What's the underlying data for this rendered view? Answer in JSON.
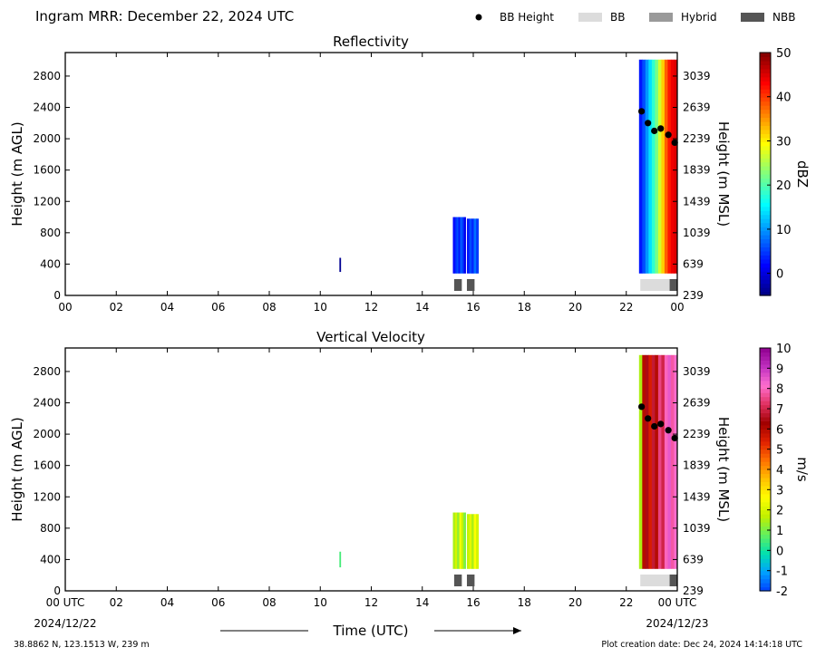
{
  "header": {
    "title": "Ingram MRR:  December 22, 2024 UTC",
    "legend": [
      {
        "label": "BB Height",
        "kind": "dot",
        "color": "#000000"
      },
      {
        "label": "BB",
        "kind": "swatch",
        "color": "#dcdcdc"
      },
      {
        "label": "Hybrid",
        "kind": "swatch",
        "color": "#9a9a9a"
      },
      {
        "label": "NBB",
        "kind": "swatch",
        "color": "#555555"
      }
    ]
  },
  "footer": {
    "location": "38.8862 N, 123.1513 W, 239 m",
    "creation_date": "Plot creation date: Dec 24, 2024 14:14:18 UTC",
    "xlabel": "Time (UTC)",
    "start_date": "2024/12/22",
    "end_date": "2024/12/23"
  },
  "chart_data": [
    {
      "type": "heatmap",
      "title": "Reflectivity",
      "ylabel": "Height (m AGL)",
      "y2label": "Height (m MSL)",
      "colorbar_label": "dBZ",
      "xlim": [
        0,
        24
      ],
      "ylim": [
        0,
        3100
      ],
      "x_ticks": [
        "00",
        "02",
        "04",
        "06",
        "08",
        "10",
        "12",
        "14",
        "16",
        "18",
        "20",
        "22",
        "00"
      ],
      "y_ticks": [
        0,
        400,
        800,
        1200,
        1600,
        2000,
        2400,
        2800
      ],
      "y2_ticks": [
        239,
        639,
        1039,
        1439,
        1839,
        2239,
        2639,
        3039
      ],
      "colorbar_range": [
        -5,
        50
      ],
      "colorbar_ticks": [
        0,
        10,
        20,
        30,
        40,
        50
      ],
      "colormap": [
        "#00007f",
        "#0000ff",
        "#007fff",
        "#00ffff",
        "#7fff7f",
        "#ffff00",
        "#ff7f00",
        "#ff0000",
        "#7f0000"
      ],
      "bb_height": {
        "x": [
          22.6,
          22.85,
          23.1,
          23.35,
          23.65,
          23.9
        ],
        "y": [
          2350,
          2200,
          2100,
          2130,
          2050,
          1950
        ]
      },
      "bb_type": [
        {
          "start": 15.25,
          "end": 15.55,
          "type": "NBB"
        },
        {
          "start": 15.75,
          "end": 16.05,
          "type": "NBB"
        },
        {
          "start": 22.55,
          "end": 23.7,
          "type": "BB"
        },
        {
          "start": 23.7,
          "end": 24.0,
          "type": "NBB"
        }
      ],
      "echoes": [
        {
          "t0": 10.75,
          "t1": 10.8,
          "h0": 300,
          "h1": 480,
          "values": [
            -4
          ]
        },
        {
          "t0": 15.2,
          "t1": 15.7,
          "h0": 280,
          "h1": 1000,
          "values": [
            2,
            4,
            6,
            3,
            7,
            5,
            1
          ]
        },
        {
          "t0": 15.75,
          "t1": 16.2,
          "h0": 280,
          "h1": 980,
          "values": [
            3,
            6,
            4,
            8,
            5
          ]
        },
        {
          "t0": 22.5,
          "t1": 24.0,
          "h0": 280,
          "h1": 3010,
          "values": [
            3,
            6,
            10,
            14,
            18,
            22,
            27,
            32,
            38,
            42,
            44,
            45
          ]
        }
      ]
    },
    {
      "type": "heatmap",
      "title": "Vertical Velocity",
      "ylabel": "Height (m AGL)",
      "y2label": "Height (m MSL)",
      "colorbar_label": "m/s",
      "xlim": [
        0,
        24
      ],
      "ylim": [
        0,
        3100
      ],
      "x_ticks": [
        "00 UTC",
        "02",
        "04",
        "06",
        "08",
        "10",
        "12",
        "14",
        "16",
        "18",
        "20",
        "22",
        "00 UTC"
      ],
      "y_ticks": [
        0,
        400,
        800,
        1200,
        1600,
        2000,
        2400,
        2800
      ],
      "y2_ticks": [
        239,
        639,
        1039,
        1439,
        1839,
        2239,
        2639,
        3039
      ],
      "colorbar_range": [
        -2,
        10
      ],
      "colorbar_ticks": [
        -2,
        -1,
        0,
        1,
        2,
        3,
        4,
        5,
        6,
        7,
        8,
        9,
        10
      ],
      "colormap": [
        "#0040ff",
        "#00a0ff",
        "#00e0b0",
        "#60f060",
        "#c0f000",
        "#ffff00",
        "#ffc000",
        "#ff7000",
        "#e02000",
        "#a00000",
        "#e03060",
        "#ff70d0",
        "#c030c0",
        "#900090"
      ],
      "bb_height": {
        "x": [
          22.6,
          22.85,
          23.1,
          23.35,
          23.65,
          23.9
        ],
        "y": [
          2350,
          2200,
          2100,
          2130,
          2050,
          1950
        ]
      },
      "bb_type": [
        {
          "start": 15.25,
          "end": 15.55,
          "type": "NBB"
        },
        {
          "start": 15.75,
          "end": 16.05,
          "type": "NBB"
        },
        {
          "start": 22.55,
          "end": 23.7,
          "type": "BB"
        },
        {
          "start": 23.7,
          "end": 24.0,
          "type": "NBB"
        }
      ],
      "echoes": [
        {
          "t0": 10.75,
          "t1": 10.8,
          "h0": 300,
          "h1": 500,
          "values": [
            0.5
          ]
        },
        {
          "t0": 15.2,
          "t1": 15.7,
          "h0": 280,
          "h1": 1000,
          "values": [
            1.5,
            2,
            1.2,
            2.5,
            1.8,
            1
          ]
        },
        {
          "t0": 15.75,
          "t1": 16.2,
          "h0": 280,
          "h1": 980,
          "values": [
            1.8,
            2.2,
            1.5,
            2.6,
            2
          ]
        },
        {
          "t0": 22.5,
          "t1": 24.0,
          "h0": 280,
          "h1": 3010,
          "values": [
            1.5,
            6,
            6.5,
            5.5,
            6.8,
            6,
            7.5,
            7,
            8,
            8.5,
            7.8,
            8.2
          ]
        }
      ]
    }
  ]
}
